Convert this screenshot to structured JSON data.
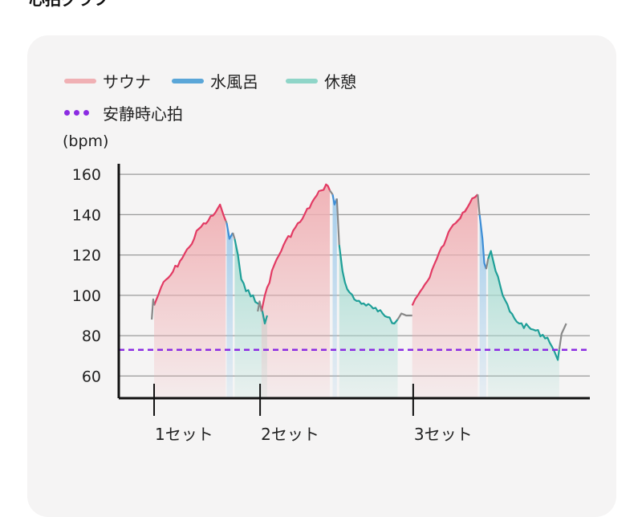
{
  "page": {
    "title": "心拍グラフ"
  },
  "colors": {
    "sauna": "#e23a63",
    "sauna_fill": "#f0b0b4",
    "cold_bath": "#3e8ed6",
    "rest": "#1f9f98",
    "rest_fill": "#a9ddd3",
    "transition": "#888888",
    "resting_line": "#8b2be2",
    "grid": "#9a9a9a",
    "axis": "#111111"
  },
  "legend": [
    {
      "label": "サウナ",
      "color": "#f0b0b4",
      "icon": "line-swatch"
    },
    {
      "label": "水風呂",
      "color": "#5aa6d8",
      "icon": "line-swatch"
    },
    {
      "label": "休憩",
      "color": "#8fd5c8",
      "icon": "line-swatch"
    },
    {
      "label": "安静時心拍",
      "color": "#8b2be2",
      "icon": "dotted-swatch"
    }
  ],
  "chart_data": {
    "type": "area",
    "ylabel": "(bpm)",
    "ylim": [
      49,
      170
    ],
    "yticks": [
      60,
      80,
      100,
      120,
      140,
      160
    ],
    "xlim": [
      0,
      100
    ],
    "set_markers": [
      {
        "x": 7.5,
        "label": "1セット"
      },
      {
        "x": 30.0,
        "label": "2セット"
      },
      {
        "x": 62.5,
        "label": "3セット"
      }
    ],
    "resting_heart_rate": 73,
    "grid": true,
    "legend_position": "top-left",
    "series": [
      {
        "name": "サウナ",
        "phase": "sauna",
        "points": [
          [
            7.5,
            95
          ],
          [
            9,
            104
          ],
          [
            11,
            110
          ],
          [
            13,
            117
          ],
          [
            15,
            124
          ],
          [
            17,
            133
          ],
          [
            19,
            137
          ],
          [
            20.5,
            141
          ],
          [
            21.5,
            145
          ],
          [
            22.2,
            140
          ],
          [
            22.7,
            137
          ]
        ]
      },
      {
        "name": "水風呂",
        "phase": "cold",
        "points": [
          [
            22.9,
            136
          ],
          [
            23.5,
            128
          ],
          [
            24.2,
            131
          ]
        ]
      },
      {
        "name": "休憩",
        "phase": "rest",
        "points": [
          [
            24.6,
            128
          ],
          [
            25.3,
            120
          ],
          [
            26,
            108
          ],
          [
            27,
            102
          ],
          [
            28.5,
            100
          ],
          [
            29.5,
            96
          ],
          [
            30.5,
            92
          ],
          [
            31,
            86
          ],
          [
            31.5,
            90
          ]
        ]
      },
      {
        "name": "サウナ",
        "phase": "sauna",
        "points": [
          [
            30.3,
            92
          ],
          [
            31,
            100
          ],
          [
            33,
            115
          ],
          [
            35,
            125
          ],
          [
            37,
            132
          ],
          [
            39,
            138
          ],
          [
            41,
            146
          ],
          [
            43,
            152
          ],
          [
            44,
            155
          ],
          [
            44.8,
            152
          ]
        ]
      },
      {
        "name": "水風呂",
        "phase": "cold",
        "points": [
          [
            45.4,
            150
          ],
          [
            45.8,
            145
          ],
          [
            46.3,
            148
          ]
        ]
      },
      {
        "name": "休憩",
        "phase": "rest",
        "points": [
          [
            46.8,
            125
          ],
          [
            47.5,
            112
          ],
          [
            48.5,
            103
          ],
          [
            50,
            98
          ],
          [
            52,
            96
          ],
          [
            55,
            92
          ],
          [
            57.5,
            89
          ],
          [
            58.5,
            86
          ],
          [
            59.2,
            88
          ]
        ]
      },
      {
        "name": "サウナ",
        "phase": "sauna",
        "points": [
          [
            62.3,
            95
          ],
          [
            63.5,
            100
          ],
          [
            65.5,
            107
          ],
          [
            67.5,
            118
          ],
          [
            69.5,
            128
          ],
          [
            71,
            135
          ],
          [
            73,
            141
          ],
          [
            75,
            148
          ],
          [
            76.2,
            150
          ]
        ]
      },
      {
        "name": "水風呂",
        "phase": "cold",
        "points": [
          [
            76.6,
            140
          ],
          [
            77.2,
            128
          ],
          [
            77.6,
            116
          ],
          [
            78,
            113
          ]
        ]
      },
      {
        "name": "休憩",
        "phase": "rest",
        "points": [
          [
            78.4,
            118
          ],
          [
            79,
            122
          ],
          [
            80,
            112
          ],
          [
            81.5,
            100
          ],
          [
            83,
            92
          ],
          [
            85,
            86
          ],
          [
            88,
            83
          ],
          [
            91,
            79
          ],
          [
            92.5,
            72
          ],
          [
            93.2,
            68
          ],
          [
            93.5,
            73
          ]
        ]
      },
      {
        "name": "",
        "phase": "transition",
        "points": [
          [
            7,
            88
          ],
          [
            7.3,
            98
          ],
          [
            7.5,
            95
          ]
        ]
      },
      {
        "name": "",
        "phase": "transition",
        "points": [
          [
            22.7,
            137
          ],
          [
            22.9,
            136
          ]
        ]
      },
      {
        "name": "",
        "phase": "transition",
        "points": [
          [
            24.2,
            131
          ],
          [
            24.6,
            128
          ]
        ]
      },
      {
        "name": "",
        "phase": "transition",
        "points": [
          [
            29.5,
            92
          ],
          [
            29.9,
            97
          ],
          [
            30.3,
            92
          ]
        ]
      },
      {
        "name": "",
        "phase": "transition",
        "points": [
          [
            44.8,
            152
          ],
          [
            45.4,
            150
          ]
        ]
      },
      {
        "name": "",
        "phase": "transition",
        "points": [
          [
            46.3,
            148
          ],
          [
            46.8,
            125
          ]
        ]
      },
      {
        "name": "",
        "phase": "transition",
        "points": [
          [
            59.2,
            88
          ],
          [
            60,
            91
          ],
          [
            61,
            90
          ],
          [
            62.3,
            90
          ]
        ]
      },
      {
        "name": "",
        "phase": "transition",
        "points": [
          [
            76.2,
            150
          ],
          [
            76.6,
            140
          ]
        ]
      },
      {
        "name": "",
        "phase": "transition",
        "points": [
          [
            78,
            113
          ],
          [
            78.4,
            118
          ]
        ]
      },
      {
        "name": "",
        "phase": "transition",
        "points": [
          [
            93.5,
            73
          ],
          [
            94,
            81
          ],
          [
            94.6,
            84
          ],
          [
            95,
            86
          ]
        ]
      }
    ]
  }
}
